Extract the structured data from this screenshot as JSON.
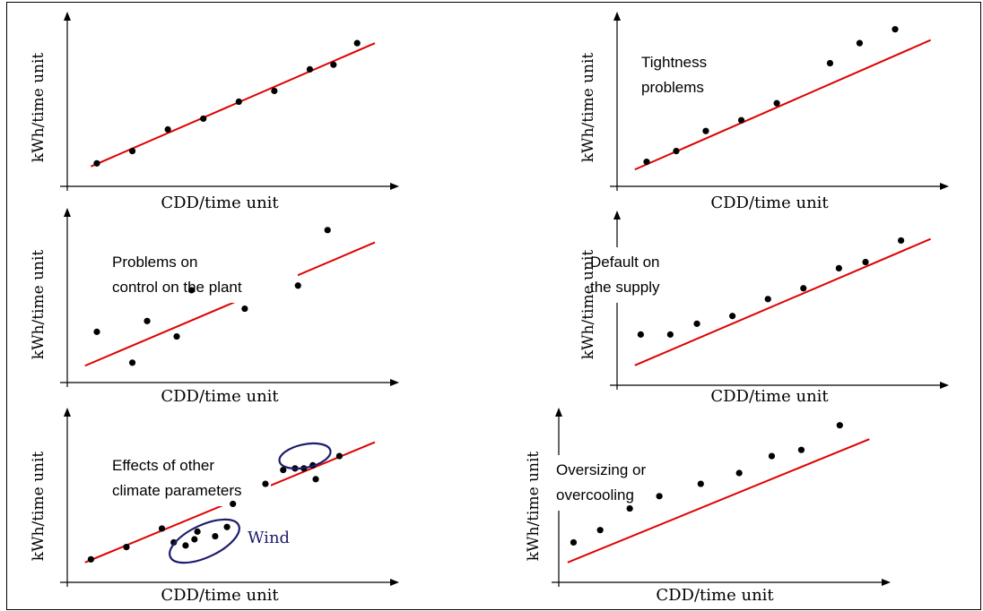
{
  "colors": {
    "fit_line": "#e00000",
    "points": "#000000",
    "axes": "#000000",
    "ellipse": "#1c1c6e"
  },
  "panels": [
    {
      "id": "p1",
      "xlabel": "CDD/time unit",
      "ylabel": "kWh/time unit",
      "annotation_lines": [],
      "points": [
        [
          0.1,
          0.12
        ],
        [
          0.22,
          0.2
        ],
        [
          0.34,
          0.34
        ],
        [
          0.46,
          0.41
        ],
        [
          0.58,
          0.52
        ],
        [
          0.7,
          0.59
        ],
        [
          0.82,
          0.73
        ],
        [
          0.9,
          0.76
        ],
        [
          0.98,
          0.9
        ]
      ],
      "fit": [
        [
          0.08,
          0.1
        ],
        [
          1.04,
          0.9
        ]
      ]
    },
    {
      "id": "p2",
      "xlabel": "CDD/time unit",
      "ylabel": "kWh/time unit",
      "annotation_lines": [
        "Tightness",
        "problems"
      ],
      "points": [
        [
          0.1,
          0.13
        ],
        [
          0.2,
          0.2
        ],
        [
          0.3,
          0.33
        ],
        [
          0.42,
          0.4
        ],
        [
          0.54,
          0.51
        ],
        [
          0.72,
          0.77
        ],
        [
          0.82,
          0.9
        ],
        [
          0.94,
          0.99
        ]
      ],
      "fit": [
        [
          0.06,
          0.08
        ],
        [
          1.06,
          0.92
        ]
      ]
    },
    {
      "id": "p3",
      "xlabel": "CDD/time unit",
      "ylabel": "kWh/time unit",
      "annotation_lines": [
        "Problems on",
        "control on the plant"
      ],
      "points": [
        [
          0.1,
          0.3
        ],
        [
          0.22,
          0.1
        ],
        [
          0.27,
          0.37
        ],
        [
          0.37,
          0.27
        ],
        [
          0.42,
          0.57
        ],
        [
          0.6,
          0.45
        ],
        [
          0.78,
          0.6
        ],
        [
          0.88,
          0.96
        ]
      ],
      "fit": [
        [
          0.06,
          0.08
        ],
        [
          1.04,
          0.88
        ]
      ]
    },
    {
      "id": "p4",
      "xlabel": "CDD/time unit",
      "ylabel": "kWh/time unit",
      "annotation_lines": [
        "Default on",
        "the supply"
      ],
      "points": [
        [
          0.08,
          0.3
        ],
        [
          0.18,
          0.3
        ],
        [
          0.27,
          0.37
        ],
        [
          0.39,
          0.42
        ],
        [
          0.51,
          0.53
        ],
        [
          0.63,
          0.6
        ],
        [
          0.75,
          0.73
        ],
        [
          0.84,
          0.77
        ],
        [
          0.96,
          0.91
        ]
      ],
      "fit": [
        [
          0.06,
          0.1
        ],
        [
          1.06,
          0.92
        ]
      ]
    },
    {
      "id": "p5",
      "xlabel": "CDD/time unit",
      "ylabel": "kWh/time unit",
      "annotation_lines": [
        "Effects of other",
        "climate parameters"
      ],
      "wind_label": "Wind",
      "points": [
        [
          0.08,
          0.12
        ],
        [
          0.2,
          0.2
        ],
        [
          0.32,
          0.32
        ],
        [
          0.36,
          0.23
        ],
        [
          0.4,
          0.21
        ],
        [
          0.43,
          0.25
        ],
        [
          0.44,
          0.3
        ],
        [
          0.5,
          0.27
        ],
        [
          0.54,
          0.33
        ],
        [
          0.56,
          0.48
        ],
        [
          0.67,
          0.61
        ],
        [
          0.73,
          0.7
        ],
        [
          0.77,
          0.71
        ],
        [
          0.8,
          0.71
        ],
        [
          0.83,
          0.73
        ],
        [
          0.84,
          0.64
        ],
        [
          0.92,
          0.79
        ]
      ],
      "fit": [
        [
          0.06,
          0.1
        ],
        [
          1.04,
          0.88
        ]
      ]
    },
    {
      "id": "p6",
      "xlabel": "CDD/time unit",
      "ylabel": "kWh/time unit",
      "annotation_lines": [
        "Oversizing or",
        "overcooling"
      ],
      "points": [
        [
          0.05,
          0.23
        ],
        [
          0.14,
          0.31
        ],
        [
          0.24,
          0.45
        ],
        [
          0.34,
          0.53
        ],
        [
          0.48,
          0.61
        ],
        [
          0.61,
          0.68
        ],
        [
          0.72,
          0.79
        ],
        [
          0.82,
          0.83
        ],
        [
          0.95,
          0.99
        ]
      ],
      "fit": [
        [
          0.03,
          0.1
        ],
        [
          1.05,
          0.9
        ]
      ]
    }
  ]
}
